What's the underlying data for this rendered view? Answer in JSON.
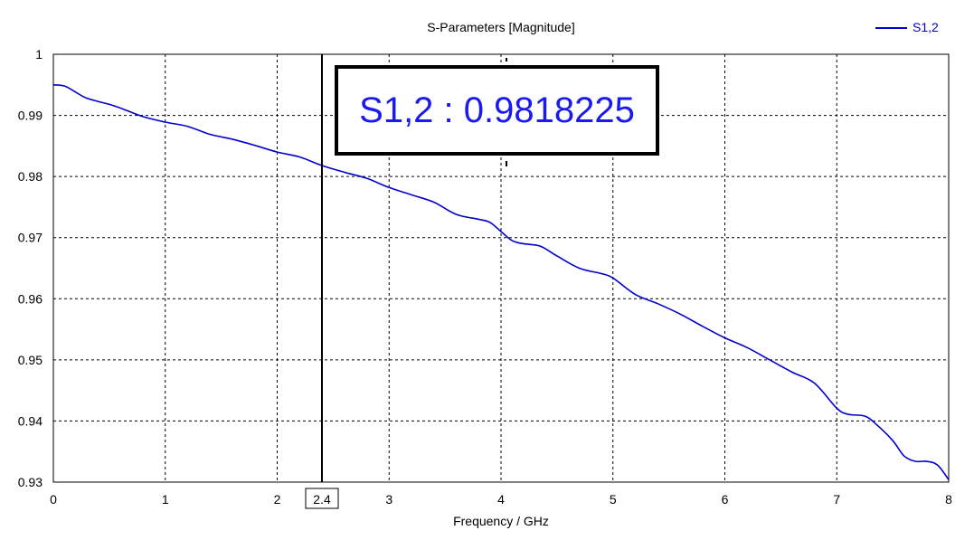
{
  "chart_data": {
    "type": "line",
    "title": "S-Parameters [Magnitude]",
    "xlabel": "Frequency / GHz",
    "ylabel": "",
    "xlim": [
      0,
      8
    ],
    "ylim": [
      0.93,
      1
    ],
    "xticks": [
      "0",
      "1",
      "2",
      "3",
      "4",
      "5",
      "6",
      "7",
      "8"
    ],
    "yticks": [
      "1",
      "0.99",
      "0.98",
      "0.97",
      "0.96",
      "0.95",
      "0.94",
      "0.93"
    ],
    "grid": true,
    "legend": "top-right",
    "series": [
      {
        "name": "S1,2",
        "color": "#0000cc",
        "x": [
          0,
          0.1,
          0.2,
          0.3,
          0.5,
          0.6,
          0.8,
          1.0,
          1.2,
          1.4,
          1.6,
          1.8,
          2.0,
          2.2,
          2.4,
          2.6,
          2.8,
          3.0,
          3.2,
          3.4,
          3.6,
          3.8,
          3.9,
          4.0,
          4.1,
          4.2,
          4.35,
          4.5,
          4.7,
          4.9,
          5.0,
          5.2,
          5.4,
          5.6,
          5.8,
          6.0,
          6.2,
          6.4,
          6.6,
          6.8,
          7.0,
          7.1,
          7.25,
          7.35,
          7.5,
          7.6,
          7.7,
          7.8,
          7.9,
          8.0
        ],
        "values": [
          0.995,
          0.9948,
          0.9938,
          0.9928,
          0.9918,
          0.9912,
          0.9898,
          0.9889,
          0.9882,
          0.9869,
          0.9861,
          0.9851,
          0.984,
          0.9832,
          0.9818,
          0.9807,
          0.9797,
          0.9782,
          0.977,
          0.9758,
          0.9738,
          0.973,
          0.9725,
          0.971,
          0.9695,
          0.969,
          0.9686,
          0.967,
          0.965,
          0.9641,
          0.9634,
          0.9607,
          0.9592,
          0.9575,
          0.9555,
          0.9536,
          0.952,
          0.95,
          0.948,
          0.9462,
          0.9421,
          0.9411,
          0.9408,
          0.9395,
          0.9368,
          0.9343,
          0.9334,
          0.9334,
          0.9328,
          0.9304
        ]
      }
    ],
    "marker": {
      "x": 2.4,
      "x_label": "2.4",
      "readout": "S1,2 : 0.9818225"
    }
  }
}
